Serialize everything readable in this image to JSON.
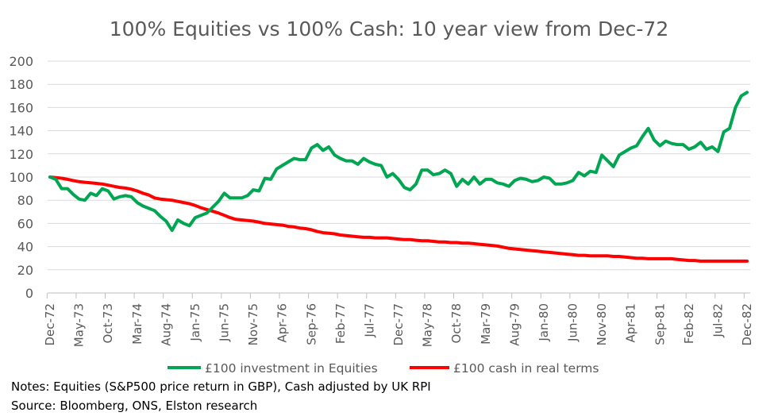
{
  "watermark": "Elston Research",
  "notes": {
    "line1": "Notes: Equities (S&P500 price return in GBP), Cash adjusted by UK RPI",
    "line2": "Source:  Bloomberg, ONS,  Elston research"
  },
  "chart_data": {
    "type": "line",
    "title": "100% Equities vs 100% Cash: 10 year view from Dec-72",
    "xlabel": "",
    "ylabel": "",
    "ylim": [
      0,
      200
    ],
    "yticks": [
      0,
      20,
      40,
      60,
      80,
      100,
      120,
      140,
      160,
      180,
      200
    ],
    "grid": "horizontal",
    "legend": "bottom",
    "x_frequency": "monthly",
    "x_start": "Dec-72",
    "x_end": "Dec-82",
    "xtick_labels": [
      "Dec-72",
      "May-73",
      "Oct-73",
      "Mar-74",
      "Aug-74",
      "Jan-75",
      "Jun-75",
      "Nov-75",
      "Apr-76",
      "Sep-76",
      "Feb-77",
      "Jul-77",
      "Dec-77",
      "May-78",
      "Oct-78",
      "Mar-79",
      "Aug-79",
      "Jan-80",
      "Jun-80",
      "Nov-80",
      "Apr-81",
      "Sep-81",
      "Feb-82",
      "Jul-82",
      "Dec-82"
    ],
    "series": [
      {
        "name": "£100 investment in Equities",
        "color": "#00A651",
        "values": [
          100,
          98,
          90,
          90,
          85,
          81,
          80,
          86,
          84,
          90,
          88,
          81,
          83,
          84,
          83,
          78,
          75,
          73,
          71,
          66,
          62,
          54,
          63,
          60,
          58,
          65,
          67,
          69,
          74,
          79,
          86,
          82,
          82,
          82,
          84,
          89,
          88,
          99,
          98,
          107,
          110,
          113,
          116,
          115,
          115,
          125,
          128,
          123,
          126,
          119,
          116,
          114,
          114,
          111,
          116,
          113,
          111,
          110,
          100,
          103,
          98,
          91,
          89,
          94,
          106,
          106,
          102,
          103,
          106,
          103,
          92,
          98,
          94,
          100,
          94,
          98,
          98,
          95,
          94,
          92,
          97,
          99,
          98,
          96,
          97,
          100,
          99,
          94,
          94,
          95,
          97,
          104,
          101,
          105,
          104,
          119,
          114,
          109,
          119,
          122,
          125,
          127,
          135,
          142,
          132,
          127,
          131,
          129,
          128,
          128,
          124,
          126,
          130,
          124,
          126,
          122,
          139,
          142,
          160,
          170,
          173
        ]
      },
      {
        "name": "£100 cash in real terms",
        "color": "#FF0000",
        "values": [
          100,
          99.5,
          99,
          98,
          97,
          96,
          95.5,
          95,
          94.5,
          94,
          93,
          92,
          91,
          90.5,
          89.5,
          88,
          86,
          84.5,
          82,
          81,
          80.5,
          80,
          79,
          78,
          77,
          75.5,
          73.5,
          72,
          70.5,
          69,
          67,
          65,
          63.5,
          63,
          62.5,
          62,
          61,
          60,
          59.5,
          59,
          58.5,
          57.5,
          57,
          56,
          55.5,
          54.5,
          53,
          52,
          51.5,
          51,
          50,
          49.5,
          49,
          48.5,
          48,
          48,
          47.5,
          47.5,
          47.5,
          47,
          46.5,
          46,
          46,
          45.5,
          45,
          45,
          44.5,
          44,
          44,
          43.5,
          43.5,
          43,
          43,
          42.5,
          42,
          41.5,
          41,
          40.5,
          39.5,
          38.5,
          38,
          37.5,
          37,
          36.5,
          36,
          35.5,
          35,
          34.5,
          34,
          33.5,
          33,
          32.5,
          32.5,
          32,
          32,
          32,
          32,
          31.5,
          31.5,
          31,
          30.5,
          30,
          30,
          29.5,
          29.5,
          29.5,
          29.5,
          29.5,
          29,
          28.5,
          28,
          28,
          27.5,
          27.5,
          27.5,
          27.5,
          27.5,
          27.5,
          27.5,
          27.5,
          27.5
        ]
      }
    ]
  }
}
